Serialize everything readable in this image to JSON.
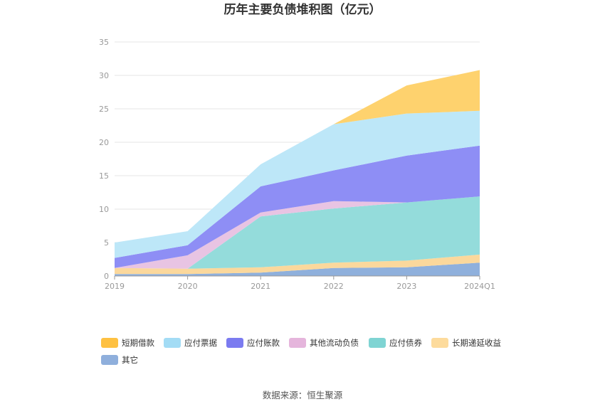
{
  "chart_data": {
    "type": "area",
    "stacked": true,
    "title": "历年主要负债堆积图（亿元）",
    "categories": [
      "2019",
      "2020",
      "2021",
      "2022",
      "2023",
      "2024Q1"
    ],
    "ylim": [
      0,
      35
    ],
    "yticks": [
      "0",
      "5",
      "10",
      "15",
      "20",
      "25",
      "30",
      "35"
    ],
    "grid": true,
    "legend_position": "bottom",
    "series": [
      {
        "name": "其它",
        "color": "#8fb0dc",
        "values": [
          0.3,
          0.3,
          0.5,
          1.2,
          1.3,
          2.0
        ]
      },
      {
        "name": "长期递延收益",
        "color": "#fbd89c",
        "values": [
          0.9,
          0.8,
          0.8,
          0.8,
          1.0,
          1.2
        ]
      },
      {
        "name": "应付债券",
        "color": "#94dcdb",
        "values": [
          0.0,
          0.0,
          7.6,
          8.1,
          8.7,
          8.7
        ]
      },
      {
        "name": "其他流动负债",
        "color": "#e8c4e3",
        "values": [
          0.0,
          2.0,
          0.6,
          1.1,
          0.0,
          0.0
        ]
      },
      {
        "name": "应付账款",
        "color": "#8e8ef5",
        "values": [
          1.5,
          1.5,
          3.9,
          4.6,
          7.0,
          7.6
        ]
      },
      {
        "name": "应付票据",
        "color": "#bde7f8",
        "values": [
          2.3,
          2.1,
          3.3,
          6.9,
          6.3,
          5.2
        ]
      },
      {
        "name": "短期借款",
        "color": "#fed26e",
        "values": [
          0.0,
          0.0,
          0.0,
          0.0,
          4.2,
          6.1
        ]
      }
    ],
    "legend_order": [
      "短期借款",
      "应付票据",
      "应付账款",
      "其他流动负债",
      "应付债券",
      "长期递延收益",
      "其它"
    ],
    "legend_colors": {
      "短期借款": "#fec142",
      "应付票据": "#a3dcf5",
      "应付账款": "#7b7bf0",
      "其他流动负债": "#e5b5dc",
      "应付债券": "#7fd4d3",
      "长期递延收益": "#fddb9c",
      "其它": "#8fafdc"
    }
  },
  "source": "数据来源：恒生聚源"
}
